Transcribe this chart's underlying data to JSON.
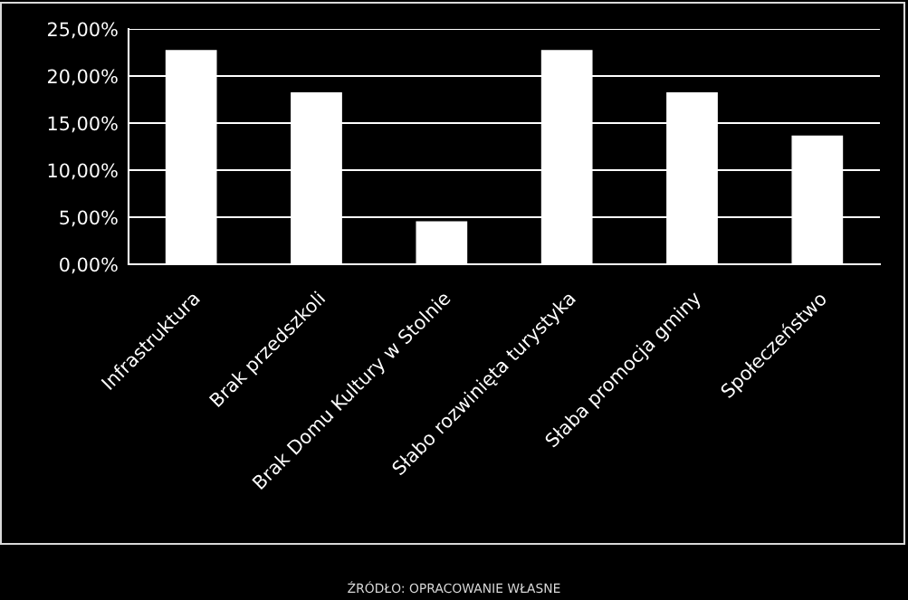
{
  "chart_data": {
    "type": "bar",
    "categories": [
      "Infrastruktura",
      "Brak przedszkoli",
      "Brak Domu Kultury w Stolnie",
      "Słabo rozwinięta turystyka",
      "Słaba promocja gminy",
      "Społeczeństwo"
    ],
    "values": [
      22.7,
      18.2,
      4.5,
      22.7,
      18.2,
      13.6
    ],
    "color": "#ffffff",
    "ylim": [
      0,
      25
    ],
    "yticks": [
      {
        "value": 0,
        "label": "0,00%"
      },
      {
        "value": 5,
        "label": "5,00%"
      },
      {
        "value": 10,
        "label": "10,00%"
      },
      {
        "value": 15,
        "label": "15,00%"
      },
      {
        "value": 20,
        "label": "20,00%"
      },
      {
        "value": 25,
        "label": "25,00%"
      }
    ],
    "grid": "y",
    "annotations": [
      "ŹRÓDŁO: OPRACOWANIE WŁASNE"
    ]
  }
}
